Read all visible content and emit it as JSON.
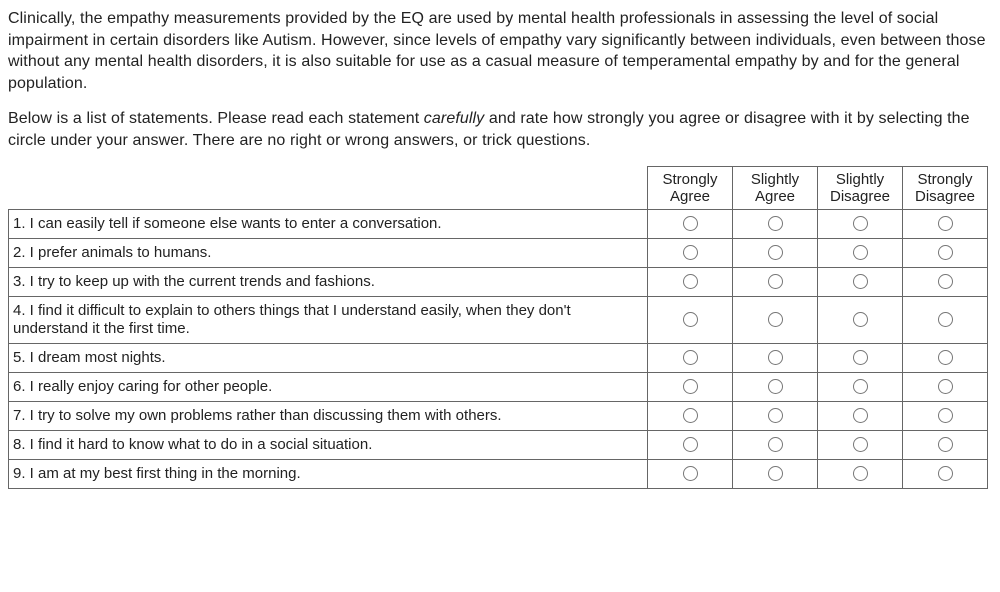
{
  "intro": {
    "para1": "Clinically, the empathy measurements provided by the EQ are used by mental health professionals in assessing the level of social impairment in certain disorders like Autism. However, since levels of empathy vary significantly between individuals, even between those without any mental health disorders, it is also suitable for use as a casual measure of temperamental empathy by and for the general population.",
    "para2_pre": "Below is a list of statements. Please read each statement ",
    "para2_italic": "carefully",
    "para2_post": " and rate how strongly you agree or disagree with it by selecting the circle under your answer. There are no right or wrong answers, or trick questions."
  },
  "headers": {
    "col1_line1": "Strongly",
    "col1_line2": "Agree",
    "col2_line1": "Slightly",
    "col2_line2": "Agree",
    "col3_line1": "Slightly",
    "col3_line2": "Disagree",
    "col4_line1": "Strongly",
    "col4_line2": "Disagree"
  },
  "statements": [
    {
      "text": "1. I can easily tell if someone else wants to enter a conversation."
    },
    {
      "text": "2. I prefer animals to humans."
    },
    {
      "text": "3. I try to keep up with the current trends and fashions."
    },
    {
      "text": "4. I find it difficult to explain to others things that I understand easily, when they don't understand it the first time."
    },
    {
      "text": "5. I dream most nights."
    },
    {
      "text": "6. I really enjoy caring for other people."
    },
    {
      "text": "7. I try to solve my own problems rather than discussing them with others."
    },
    {
      "text": "8. I find it hard to know what to do in a social situation."
    },
    {
      "text": "9. I am at my best first thing in the morning."
    }
  ],
  "style": {
    "border_color": "#666666",
    "radio_border": "#777777",
    "text_color": "#222222",
    "bg_color": "#ffffff"
  }
}
